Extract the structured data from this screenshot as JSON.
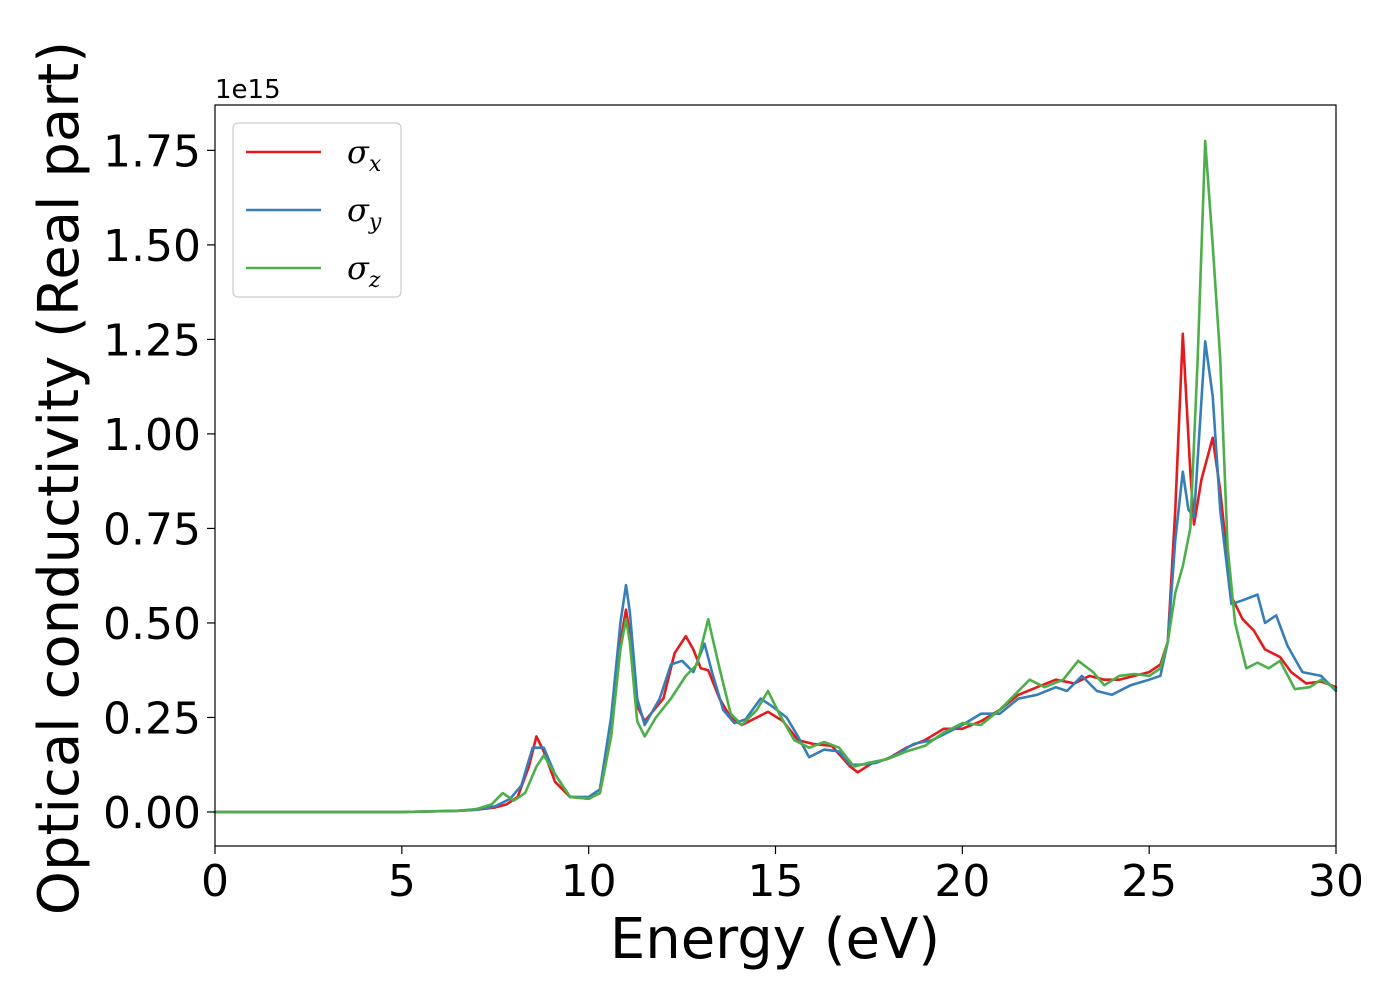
{
  "chart_data": {
    "type": "line",
    "xlabel": "Energy (eV)",
    "ylabel": "Optical conductivity (Real part)",
    "y_offset_label": "1e15",
    "xlim": [
      0,
      30
    ],
    "ylim": [
      -0.09,
      1.87
    ],
    "xticks": [
      0,
      5,
      10,
      15,
      20,
      25,
      30
    ],
    "xtick_labels": [
      "0",
      "5",
      "10",
      "15",
      "20",
      "25",
      "30"
    ],
    "yticks": [
      0.0,
      0.25,
      0.5,
      0.75,
      1.0,
      1.25,
      1.5,
      1.75
    ],
    "ytick_labels": [
      "0.00",
      "0.25",
      "0.50",
      "0.75",
      "1.00",
      "1.25",
      "1.50",
      "1.75"
    ],
    "grid": false,
    "legend_position": "top-left",
    "series": [
      {
        "name": "σx",
        "symbol": "σ",
        "subscript": "x",
        "color": "#e41a1c",
        "points": [
          [
            0,
            0
          ],
          [
            5,
            0
          ],
          [
            6.5,
            0.003
          ],
          [
            7,
            0.006
          ],
          [
            7.5,
            0.012
          ],
          [
            7.8,
            0.02
          ],
          [
            8.1,
            0.04
          ],
          [
            8.4,
            0.12
          ],
          [
            8.6,
            0.2
          ],
          [
            8.8,
            0.16
          ],
          [
            9.1,
            0.08
          ],
          [
            9.5,
            0.04
          ],
          [
            10,
            0.035
          ],
          [
            10.3,
            0.05
          ],
          [
            10.6,
            0.2
          ],
          [
            10.85,
            0.45
          ],
          [
            11,
            0.535
          ],
          [
            11.1,
            0.47
          ],
          [
            11.3,
            0.28
          ],
          [
            11.5,
            0.24
          ],
          [
            12,
            0.3
          ],
          [
            12.3,
            0.42
          ],
          [
            12.6,
            0.465
          ],
          [
            12.8,
            0.43
          ],
          [
            13,
            0.38
          ],
          [
            13.2,
            0.375
          ],
          [
            13.5,
            0.3
          ],
          [
            13.8,
            0.25
          ],
          [
            14.1,
            0.23
          ],
          [
            14.5,
            0.25
          ],
          [
            14.8,
            0.265
          ],
          [
            15.2,
            0.24
          ],
          [
            15.6,
            0.19
          ],
          [
            16,
            0.18
          ],
          [
            16.5,
            0.175
          ],
          [
            17,
            0.12
          ],
          [
            17.2,
            0.105
          ],
          [
            17.6,
            0.13
          ],
          [
            18,
            0.14
          ],
          [
            18.5,
            0.17
          ],
          [
            19,
            0.19
          ],
          [
            19.5,
            0.22
          ],
          [
            20,
            0.22
          ],
          [
            20.5,
            0.24
          ],
          [
            21,
            0.27
          ],
          [
            21.5,
            0.31
          ],
          [
            22,
            0.33
          ],
          [
            22.5,
            0.35
          ],
          [
            23,
            0.34
          ],
          [
            23.4,
            0.36
          ],
          [
            23.8,
            0.35
          ],
          [
            24.2,
            0.35
          ],
          [
            24.6,
            0.36
          ],
          [
            25,
            0.37
          ],
          [
            25.3,
            0.39
          ],
          [
            25.5,
            0.45
          ],
          [
            25.7,
            0.8
          ],
          [
            25.9,
            1.265
          ],
          [
            26.1,
            0.9
          ],
          [
            26.2,
            0.76
          ],
          [
            26.4,
            0.88
          ],
          [
            26.7,
            0.99
          ],
          [
            26.9,
            0.85
          ],
          [
            27.2,
            0.57
          ],
          [
            27.5,
            0.51
          ],
          [
            27.8,
            0.48
          ],
          [
            28.1,
            0.43
          ],
          [
            28.5,
            0.41
          ],
          [
            28.8,
            0.37
          ],
          [
            29.2,
            0.34
          ],
          [
            29.6,
            0.345
          ],
          [
            30,
            0.33
          ]
        ]
      },
      {
        "name": "σy",
        "symbol": "σ",
        "subscript": "y",
        "color": "#377eb8",
        "points": [
          [
            0,
            0
          ],
          [
            5,
            0
          ],
          [
            6.5,
            0.003
          ],
          [
            7,
            0.006
          ],
          [
            7.5,
            0.015
          ],
          [
            7.9,
            0.035
          ],
          [
            8.2,
            0.07
          ],
          [
            8.5,
            0.17
          ],
          [
            8.8,
            0.17
          ],
          [
            9.1,
            0.1
          ],
          [
            9.5,
            0.04
          ],
          [
            10,
            0.04
          ],
          [
            10.3,
            0.06
          ],
          [
            10.6,
            0.25
          ],
          [
            10.85,
            0.5
          ],
          [
            11,
            0.6
          ],
          [
            11.1,
            0.53
          ],
          [
            11.3,
            0.3
          ],
          [
            11.5,
            0.23
          ],
          [
            11.9,
            0.3
          ],
          [
            12.2,
            0.39
          ],
          [
            12.5,
            0.4
          ],
          [
            12.8,
            0.37
          ],
          [
            13.1,
            0.445
          ],
          [
            13.3,
            0.37
          ],
          [
            13.6,
            0.27
          ],
          [
            13.9,
            0.235
          ],
          [
            14.2,
            0.245
          ],
          [
            14.6,
            0.3
          ],
          [
            14.9,
            0.28
          ],
          [
            15.3,
            0.25
          ],
          [
            15.6,
            0.2
          ],
          [
            15.9,
            0.145
          ],
          [
            16.3,
            0.165
          ],
          [
            16.7,
            0.16
          ],
          [
            17,
            0.125
          ],
          [
            17.3,
            0.125
          ],
          [
            17.7,
            0.13
          ],
          [
            18.2,
            0.15
          ],
          [
            18.7,
            0.18
          ],
          [
            19.2,
            0.19
          ],
          [
            19.6,
            0.21
          ],
          [
            20,
            0.23
          ],
          [
            20.5,
            0.26
          ],
          [
            21,
            0.26
          ],
          [
            21.5,
            0.3
          ],
          [
            22,
            0.31
          ],
          [
            22.5,
            0.33
          ],
          [
            22.8,
            0.32
          ],
          [
            23.2,
            0.36
          ],
          [
            23.6,
            0.32
          ],
          [
            24,
            0.31
          ],
          [
            24.5,
            0.335
          ],
          [
            25,
            0.35
          ],
          [
            25.3,
            0.36
          ],
          [
            25.5,
            0.45
          ],
          [
            25.7,
            0.72
          ],
          [
            25.9,
            0.9
          ],
          [
            26.05,
            0.8
          ],
          [
            26.2,
            0.78
          ],
          [
            26.5,
            1.245
          ],
          [
            26.7,
            1.1
          ],
          [
            26.9,
            0.8
          ],
          [
            27.2,
            0.55
          ],
          [
            27.5,
            0.56
          ],
          [
            27.9,
            0.575
          ],
          [
            28.1,
            0.5
          ],
          [
            28.4,
            0.52
          ],
          [
            28.7,
            0.44
          ],
          [
            29.1,
            0.37
          ],
          [
            29.6,
            0.36
          ],
          [
            30,
            0.32
          ]
        ]
      },
      {
        "name": "σz",
        "symbol": "σ",
        "subscript": "z",
        "color": "#4daf4a",
        "points": [
          [
            0,
            0
          ],
          [
            5,
            0
          ],
          [
            6.5,
            0.003
          ],
          [
            7,
            0.008
          ],
          [
            7.4,
            0.02
          ],
          [
            7.7,
            0.05
          ],
          [
            8,
            0.03
          ],
          [
            8.3,
            0.05
          ],
          [
            8.6,
            0.12
          ],
          [
            8.8,
            0.15
          ],
          [
            9.1,
            0.1
          ],
          [
            9.5,
            0.04
          ],
          [
            10,
            0.035
          ],
          [
            10.3,
            0.05
          ],
          [
            10.6,
            0.2
          ],
          [
            10.85,
            0.43
          ],
          [
            11,
            0.51
          ],
          [
            11.1,
            0.45
          ],
          [
            11.3,
            0.24
          ],
          [
            11.5,
            0.2
          ],
          [
            11.8,
            0.25
          ],
          [
            12.2,
            0.3
          ],
          [
            12.6,
            0.36
          ],
          [
            12.9,
            0.39
          ],
          [
            13.2,
            0.51
          ],
          [
            13.5,
            0.38
          ],
          [
            13.8,
            0.26
          ],
          [
            14.1,
            0.23
          ],
          [
            14.5,
            0.27
          ],
          [
            14.8,
            0.32
          ],
          [
            15.1,
            0.26
          ],
          [
            15.5,
            0.19
          ],
          [
            15.9,
            0.17
          ],
          [
            16.3,
            0.185
          ],
          [
            16.7,
            0.17
          ],
          [
            17.1,
            0.12
          ],
          [
            17.5,
            0.13
          ],
          [
            18,
            0.14
          ],
          [
            18.5,
            0.16
          ],
          [
            19,
            0.175
          ],
          [
            19.5,
            0.21
          ],
          [
            20,
            0.235
          ],
          [
            20.5,
            0.23
          ],
          [
            21,
            0.27
          ],
          [
            21.5,
            0.32
          ],
          [
            21.8,
            0.35
          ],
          [
            22.2,
            0.33
          ],
          [
            22.7,
            0.35
          ],
          [
            23.1,
            0.4
          ],
          [
            23.5,
            0.37
          ],
          [
            23.8,
            0.335
          ],
          [
            24.2,
            0.36
          ],
          [
            24.6,
            0.365
          ],
          [
            25,
            0.36
          ],
          [
            25.3,
            0.38
          ],
          [
            25.5,
            0.45
          ],
          [
            25.7,
            0.58
          ],
          [
            25.9,
            0.65
          ],
          [
            26.1,
            0.75
          ],
          [
            26.3,
            1.2
          ],
          [
            26.5,
            1.775
          ],
          [
            26.7,
            1.5
          ],
          [
            26.9,
            1.2
          ],
          [
            27.1,
            0.7
          ],
          [
            27.3,
            0.5
          ],
          [
            27.6,
            0.38
          ],
          [
            27.9,
            0.395
          ],
          [
            28.2,
            0.38
          ],
          [
            28.5,
            0.4
          ],
          [
            28.9,
            0.325
          ],
          [
            29.3,
            0.33
          ],
          [
            29.6,
            0.35
          ],
          [
            30,
            0.325
          ]
        ]
      }
    ]
  }
}
